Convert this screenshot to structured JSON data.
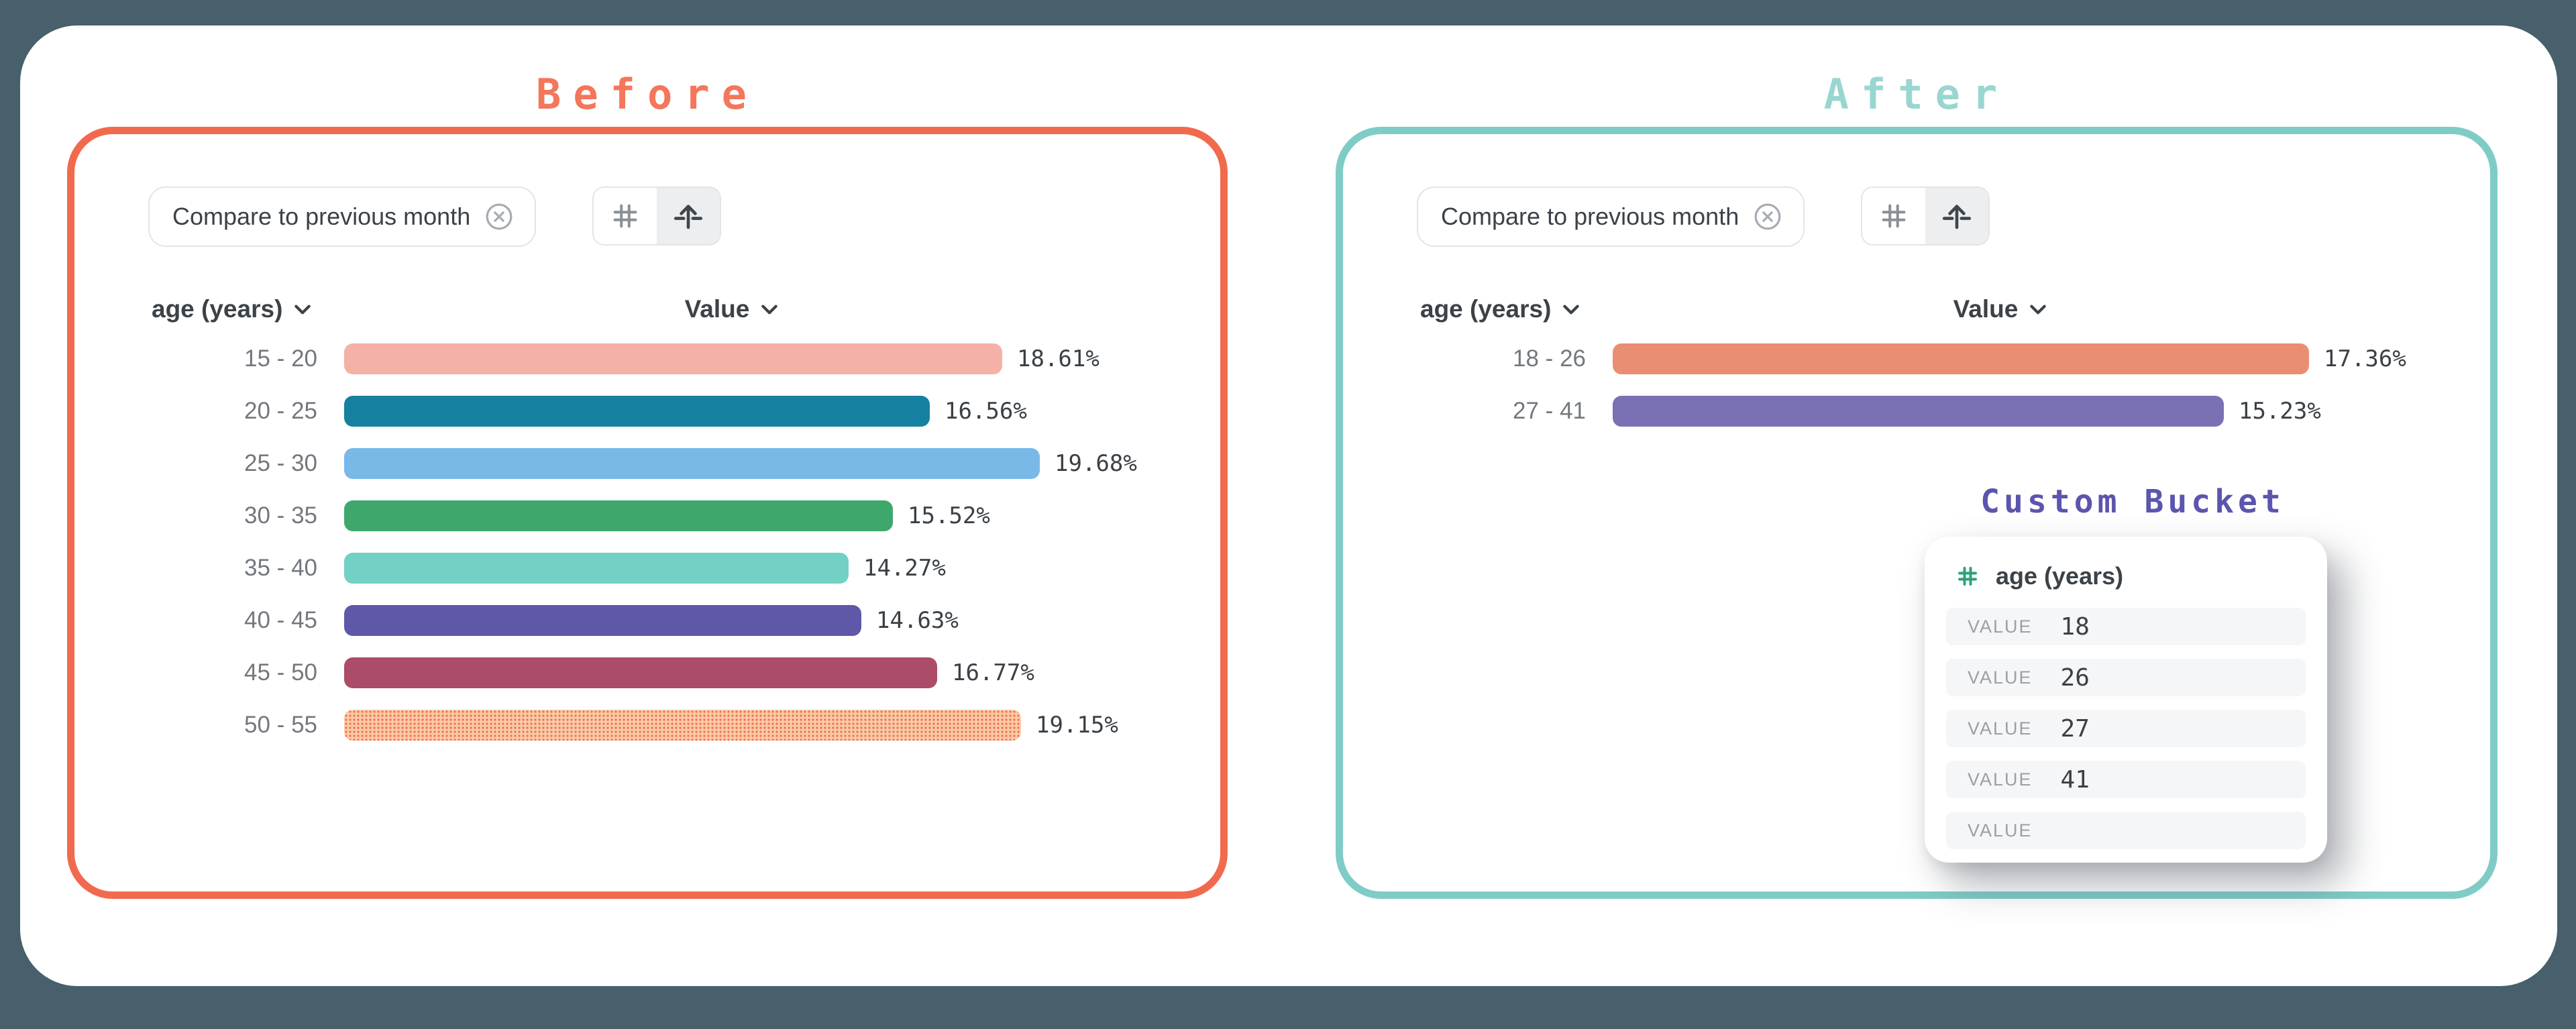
{
  "page_background": "#47606B",
  "before": {
    "title": "Before",
    "accent_border": "#F26A4D",
    "title_color": "#F4765B",
    "filter_chip": "Compare to previous month",
    "dimension_header": "age (years)",
    "value_header": "Value"
  },
  "after": {
    "title": "After",
    "accent_border": "#7FCCC7",
    "title_color": "#9AD6D1",
    "filter_chip": "Compare to previous month",
    "dimension_header": "age (years)",
    "value_header": "Value",
    "custom_bucket": {
      "title": "Custom Bucket",
      "title_color": "#5C55AE",
      "field_label": "age (years)",
      "row_label": "VALUE",
      "values": [
        "18",
        "26",
        "27",
        "41",
        ""
      ]
    }
  },
  "chart_data": [
    {
      "type": "bar",
      "orientation": "horizontal",
      "title": "Before",
      "xlabel": "Value",
      "ylabel": "age (years)",
      "value_format": "percent",
      "grid": false,
      "categories": [
        "15 - 20",
        "20 - 25",
        "25 - 30",
        "30 - 35",
        "35 - 40",
        "40 - 45",
        "45 - 50",
        "50 - 55"
      ],
      "values": [
        18.61,
        16.56,
        19.68,
        15.52,
        14.27,
        14.63,
        16.77,
        19.15
      ],
      "labels": [
        "18.61%",
        "16.56%",
        "19.68%",
        "15.52%",
        "14.27%",
        "14.63%",
        "16.77%",
        "19.15%"
      ],
      "colors": [
        "#F5B1A5",
        "#15809F",
        "#79B9E8",
        "#3EA86C",
        "#72D0C5",
        "#5F58A8",
        "#AC4C68",
        "#FBCBA9"
      ],
      "bar_styles": [
        "solid",
        "solid",
        "solid",
        "solid",
        "solid",
        "solid",
        "solid",
        "dotted"
      ],
      "dotted_style": {
        "base": "#FBCBA9",
        "dot": "#F0734E"
      }
    },
    {
      "type": "bar",
      "orientation": "horizontal",
      "title": "After",
      "xlabel": "Value",
      "ylabel": "age (years)",
      "value_format": "percent",
      "grid": false,
      "categories": [
        "18 - 26",
        "27 - 41"
      ],
      "values": [
        17.36,
        15.23
      ],
      "labels": [
        "17.36%",
        "15.23%"
      ],
      "colors": [
        "#E98E73",
        "#7A70B4"
      ],
      "bar_styles": [
        "solid",
        "solid"
      ]
    }
  ]
}
